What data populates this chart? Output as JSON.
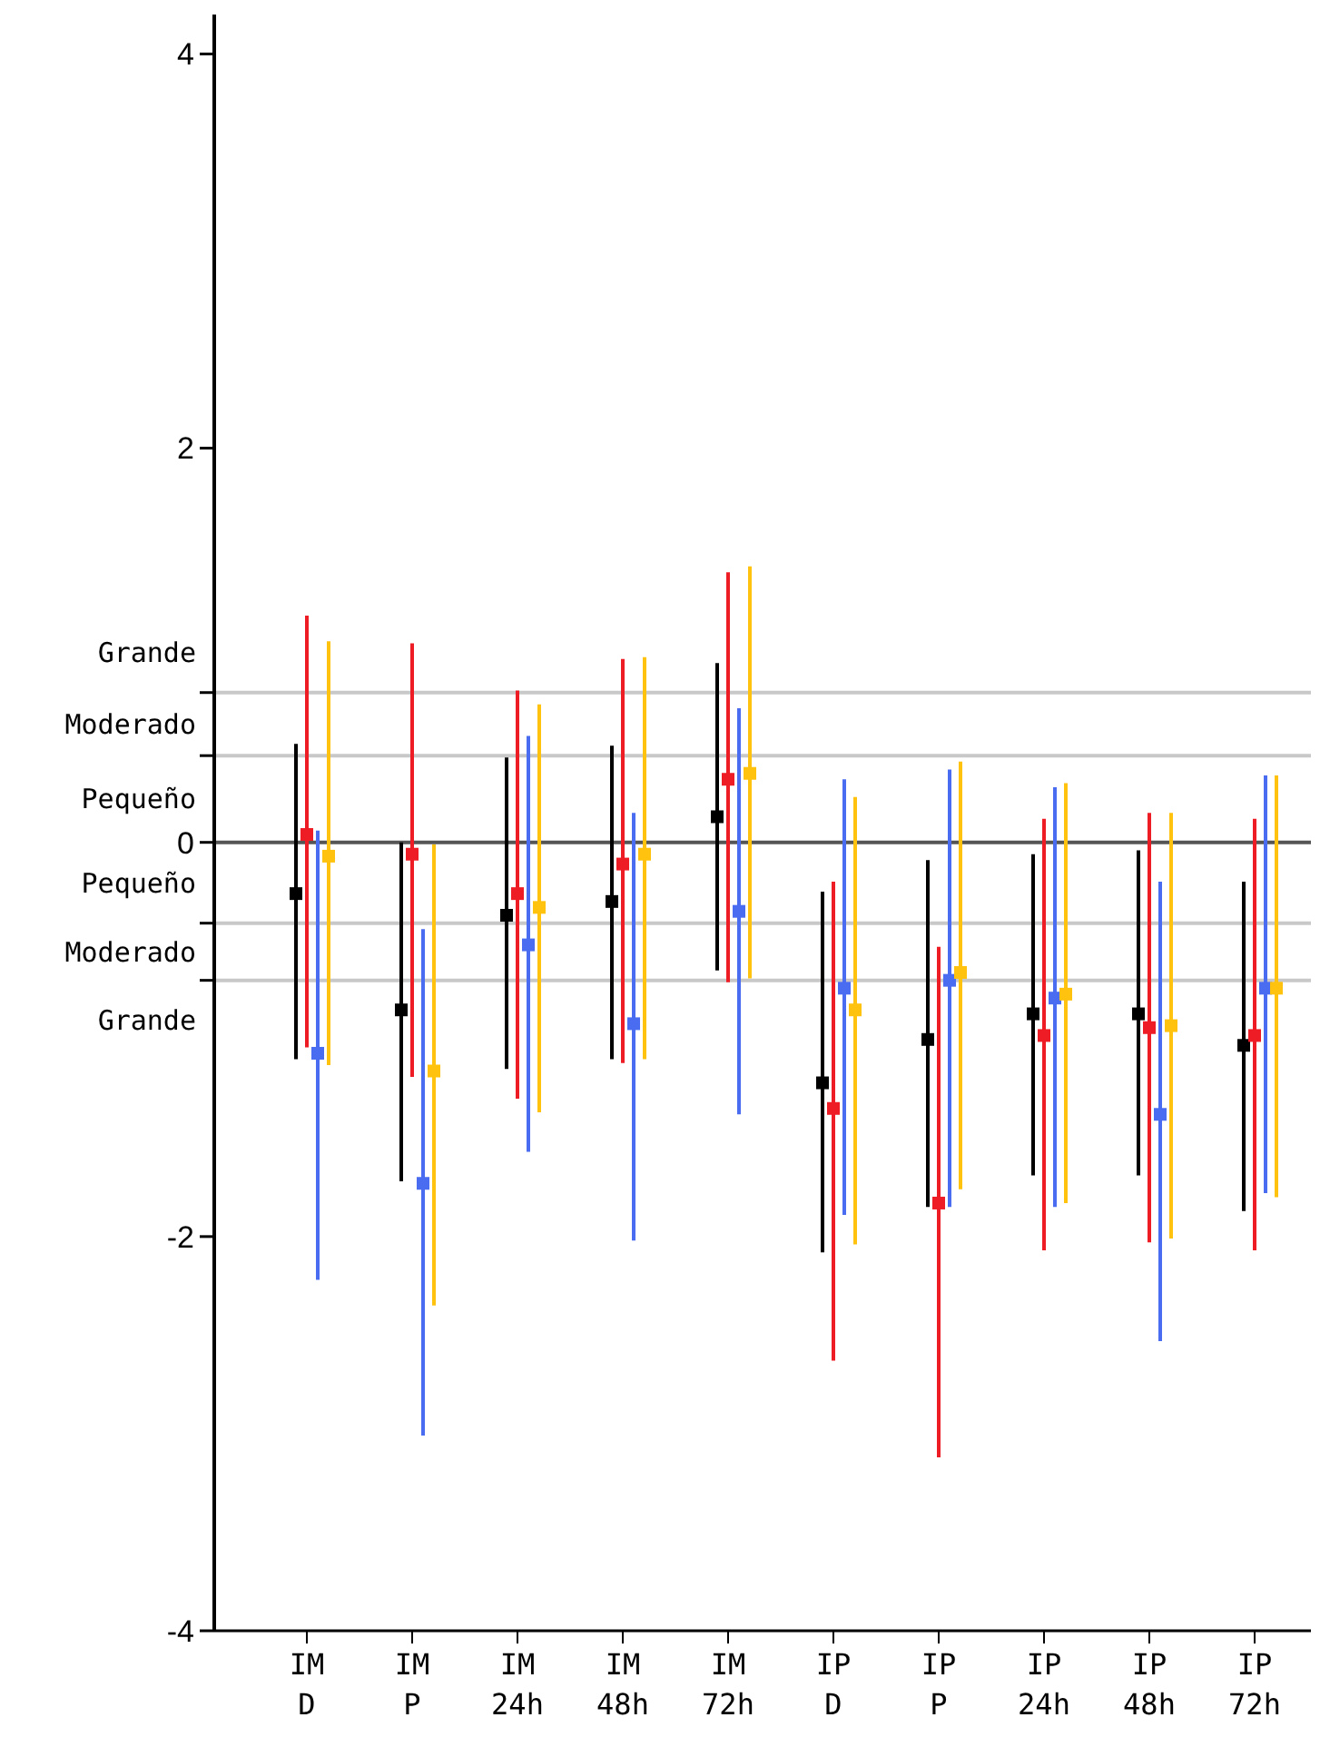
{
  "chart_data": {
    "type": "scatter",
    "marker": "square",
    "categories": [
      "IM D",
      "IM P",
      "IM 24h",
      "IM 48h",
      "IM 72h",
      "IP D",
      "IP P",
      "IP 24h",
      "IP 48h",
      "IP 72h"
    ],
    "ylim": [
      -4,
      4.2
    ],
    "yticks": [
      -4,
      -2,
      0,
      2,
      4,
      {
        "value": 0.76,
        "label": null
      },
      {
        "value": 0.44,
        "label": null
      },
      {
        "value": -0.41,
        "label": null
      },
      {
        "value": -0.7,
        "label": null
      }
    ],
    "series": [
      {
        "color": "#000000",
        "values": [
          -0.26,
          -0.85,
          -0.37,
          -0.3,
          0.13,
          -1.22,
          -1.0,
          -0.87,
          -0.87,
          -1.03
        ],
        "errors": [
          [
            -1.1,
            0.5
          ],
          [
            -1.72,
            0.0
          ],
          [
            -1.15,
            0.43
          ],
          [
            -1.1,
            0.49
          ],
          [
            -0.65,
            0.91
          ],
          [
            -2.08,
            -0.25
          ],
          [
            -1.85,
            -0.09
          ],
          [
            -1.69,
            -0.06
          ],
          [
            -1.69,
            -0.04
          ],
          [
            -1.87,
            -0.2
          ]
        ]
      },
      {
        "color": "#ee1c25",
        "values": [
          0.04,
          -0.06,
          -0.26,
          -0.11,
          0.32,
          -1.35,
          -1.83,
          -0.98,
          -0.94,
          -0.98
        ],
        "errors": [
          [
            -1.04,
            1.15
          ],
          [
            -1.19,
            1.01
          ],
          [
            -1.3,
            0.77
          ],
          [
            -1.12,
            0.93
          ],
          [
            -0.71,
            1.37
          ],
          [
            -2.63,
            -0.2
          ],
          [
            -3.12,
            -0.53
          ],
          [
            -2.07,
            0.12
          ],
          [
            -2.03,
            0.15
          ],
          [
            -2.07,
            0.12
          ]
        ]
      },
      {
        "color": "#4a6cf0",
        "values": [
          -1.07,
          -1.73,
          -0.52,
          -0.92,
          -0.35,
          -0.74,
          -0.7,
          -0.79,
          -1.38,
          -0.74
        ],
        "errors": [
          [
            -2.22,
            0.06
          ],
          [
            -3.01,
            -0.44
          ],
          [
            -1.57,
            0.54
          ],
          [
            -2.02,
            0.15
          ],
          [
            -1.38,
            0.68
          ],
          [
            -1.89,
            0.32
          ],
          [
            -1.85,
            0.37
          ],
          [
            -1.85,
            0.28
          ],
          [
            -2.53,
            -0.2
          ],
          [
            -1.78,
            0.34
          ]
        ]
      },
      {
        "color": "#ffc20e",
        "values": [
          -0.07,
          -1.16,
          -0.33,
          -0.06,
          0.35,
          -0.85,
          -0.66,
          -0.77,
          -0.93,
          -0.74
        ],
        "errors": [
          [
            -1.13,
            1.02
          ],
          [
            -2.35,
            -0.01
          ],
          [
            -1.37,
            0.7
          ],
          [
            -1.1,
            0.94
          ],
          [
            -0.69,
            1.4
          ],
          [
            -2.04,
            0.23
          ],
          [
            -1.76,
            0.41
          ],
          [
            -1.83,
            0.3
          ],
          [
            -2.01,
            0.15
          ],
          [
            -1.8,
            0.34
          ]
        ]
      }
    ],
    "ref_lines": [
      {
        "axis": "y",
        "value": 0.76,
        "color": "#c8c8c8"
      },
      {
        "axis": "y",
        "value": 0.44,
        "color": "#c8c8c8"
      },
      {
        "axis": "y",
        "value": 0,
        "color": "#555555"
      },
      {
        "axis": "y",
        "value": -0.41,
        "color": "#c8c8c8"
      },
      {
        "axis": "y",
        "value": -0.7,
        "color": "#c8c8c8"
      }
    ],
    "annotations": [
      "Grande",
      "Moderado",
      "Pequeño",
      "Pequeño",
      "Moderado",
      "Grande"
    ]
  }
}
